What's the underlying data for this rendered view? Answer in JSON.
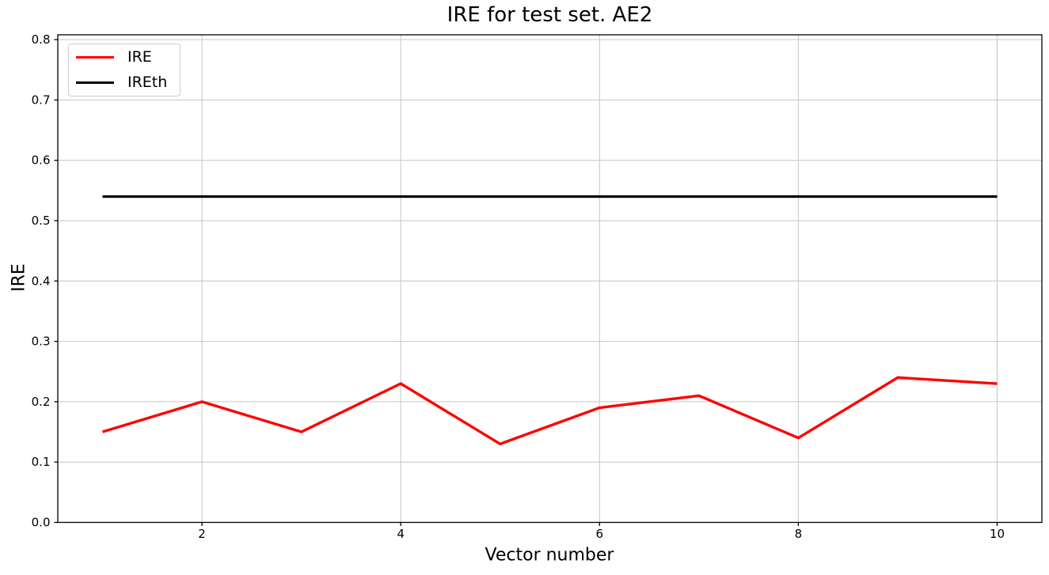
{
  "figure_type": "matplotlib-style line plot",
  "chart_data": {
    "type": "line",
    "title": "IRE for test set. AE2",
    "xlabel": "Vector number",
    "ylabel": "IRE",
    "x": [
      1,
      2,
      3,
      4,
      5,
      6,
      7,
      8,
      9,
      10
    ],
    "series": [
      {
        "name": "IRE",
        "color": "#ff0000",
        "line_width": 3.4,
        "values": [
          0.15,
          0.2,
          0.15,
          0.23,
          0.13,
          0.19,
          0.21,
          0.14,
          0.24,
          0.23
        ]
      },
      {
        "name": "IREth",
        "color": "#000000",
        "line_width": 3.2,
        "values": [
          0.54,
          0.54,
          0.54,
          0.54,
          0.54,
          0.54,
          0.54,
          0.54,
          0.54,
          0.54
        ]
      }
    ],
    "xlim": [
      0.55,
      10.45
    ],
    "ylim": [
      0.0,
      0.808
    ],
    "x_ticks": [
      2,
      4,
      6,
      8,
      10
    ],
    "x_tick_labels": [
      "2",
      "4",
      "6",
      "8",
      "10"
    ],
    "y_ticks": [
      0.0,
      0.1,
      0.2,
      0.3,
      0.4,
      0.5,
      0.6,
      0.7,
      0.8
    ],
    "y_tick_labels": [
      "0.0",
      "0.1",
      "0.2",
      "0.3",
      "0.4",
      "0.5",
      "0.6",
      "0.7",
      "0.8"
    ],
    "grid": true,
    "grid_color": "#c6c6c6",
    "spine_color": "#000000",
    "background": "#ffffff",
    "legend_position": "upper-left"
  }
}
